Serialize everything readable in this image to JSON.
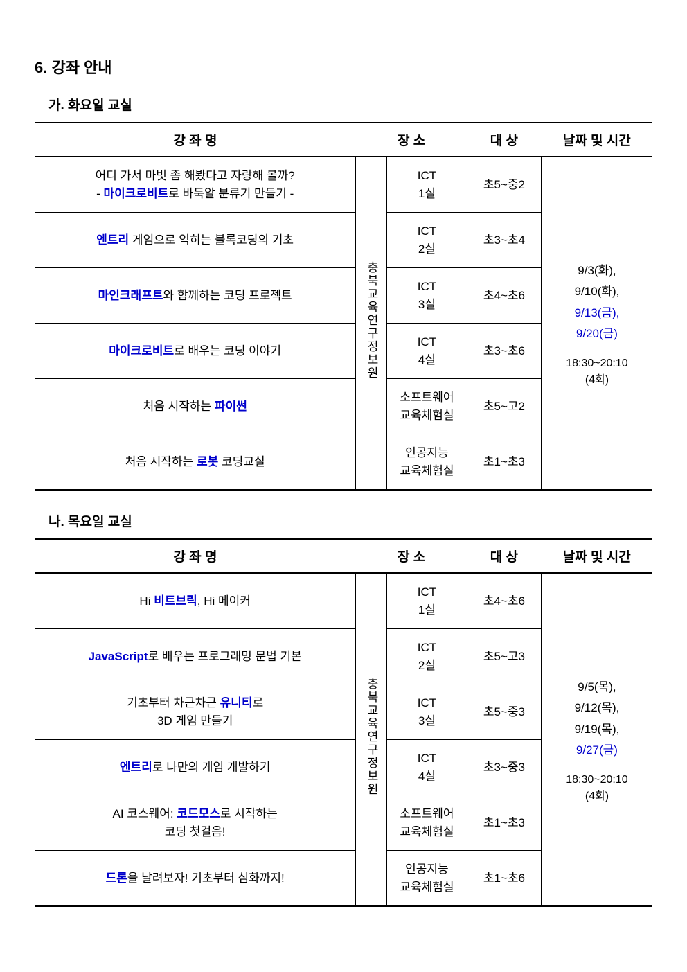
{
  "section": {
    "title": "6. 강좌 안내"
  },
  "headers": {
    "name": "강 좌 명",
    "loc": "장 소",
    "target": "대 상",
    "date": "날짜 및 시간"
  },
  "tue": {
    "title": "가. 화요일 교실",
    "loc_org": "충북교육연구정보원",
    "dates": [
      {
        "text": "9/3(화),",
        "blue": false
      },
      {
        "text": "9/10(화),",
        "blue": false
      },
      {
        "text": "9/13(금),",
        "blue": true
      },
      {
        "text": "9/20(금)",
        "blue": true
      }
    ],
    "time": "18:30~20:10",
    "time_count": "(4회)",
    "rows": [
      {
        "pre": "어디 가서 마빗 좀 해봤다고 자랑해 볼까?",
        "pre2": "- ",
        "kw": "마이크로비트",
        "post": "로 바둑알 분류기 만들기 -",
        "loc": "ICT 1실",
        "target": "초5~중2",
        "two_line": true
      },
      {
        "pre": "",
        "kw": "엔트리",
        "post": " 게임으로 익히는 블록코딩의 기초",
        "loc": "ICT 2실",
        "target": "초3~초4"
      },
      {
        "pre": "",
        "kw": "마인크래프트",
        "post": "와 함께하는 코딩 프로젝트",
        "loc": "ICT 3실",
        "target": "초4~초6"
      },
      {
        "pre": "",
        "kw": "마이크로비트",
        "post": "로 배우는 코딩 이야기",
        "loc": "ICT 4실",
        "target": "초3~초6"
      },
      {
        "pre": "처음 시작하는 ",
        "kw": "파이썬",
        "post": "",
        "loc": "소프트웨어 교육체험실",
        "target": "초5~고2"
      },
      {
        "pre": "처음 시작하는 ",
        "kw": "로봇",
        "post": " 코딩교실",
        "loc": "인공지능 교육체험실",
        "target": "초1~초3"
      }
    ]
  },
  "thu": {
    "title": "나. 목요일 교실",
    "loc_org": "충북교육연구정보원",
    "dates": [
      {
        "text": "9/5(목),",
        "blue": false
      },
      {
        "text": "9/12(목),",
        "blue": false
      },
      {
        "text": "9/19(목),",
        "blue": false
      },
      {
        "text": "9/27(금)",
        "blue": true
      }
    ],
    "time": "18:30~20:10",
    "time_count": "(4회)",
    "rows": [
      {
        "pre": "Hi ",
        "kw": "비트브릭",
        "post": ", Hi 메이커",
        "loc": "ICT 1실",
        "target": "초4~초6"
      },
      {
        "pre": "",
        "kw": "JavaScript",
        "post": "로 배우는 프로그래밍 문법 기본",
        "loc": "ICT 2실",
        "target": "초5~고3"
      },
      {
        "pre": "기초부터 차근차근 ",
        "kw": "유니티",
        "post": "로",
        "post2": "3D 게임 만들기",
        "loc": "ICT 3실",
        "target": "초5~중3",
        "two_line": true
      },
      {
        "pre": "",
        "kw": "엔트리",
        "post": "로 나만의 게임 개발하기",
        "loc": "ICT 4실",
        "target": "초3~중3"
      },
      {
        "pre": "AI 코스웨어: ",
        "kw": "코드모스",
        "post": "로 시작하는",
        "post2": "코딩 첫걸음!",
        "loc": "소프트웨어 교육체험실",
        "target": "초1~초3",
        "two_line": true
      },
      {
        "pre": "",
        "kw": "드론",
        "post": "을 날려보자! 기초부터 심화까지!",
        "loc": "인공지능 교육체험실",
        "target": "초1~초6"
      }
    ]
  }
}
